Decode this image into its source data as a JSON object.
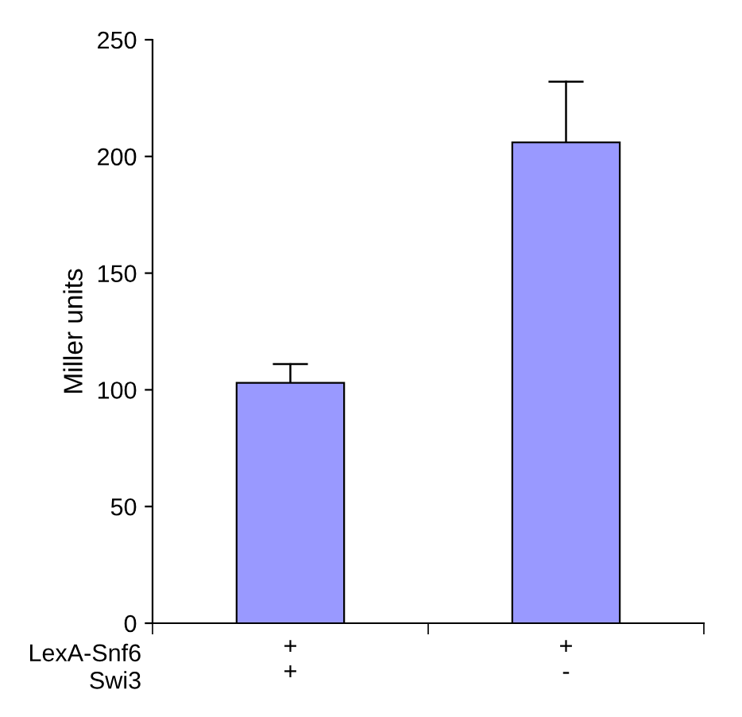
{
  "chart_data": {
    "type": "bar",
    "ylabel": "Miller units",
    "categories": [
      "+\n+",
      "+\n-"
    ],
    "values": [
      103,
      206
    ],
    "errors": [
      [
        103,
        111
      ],
      [
        206,
        232
      ]
    ],
    "color": "#9999ff",
    "ylim": [
      0,
      250
    ],
    "yticks": [
      0,
      50,
      100,
      150,
      200,
      250
    ],
    "annotations": [
      "LexA-Snf6",
      "Swi3"
    ],
    "grid": false
  }
}
